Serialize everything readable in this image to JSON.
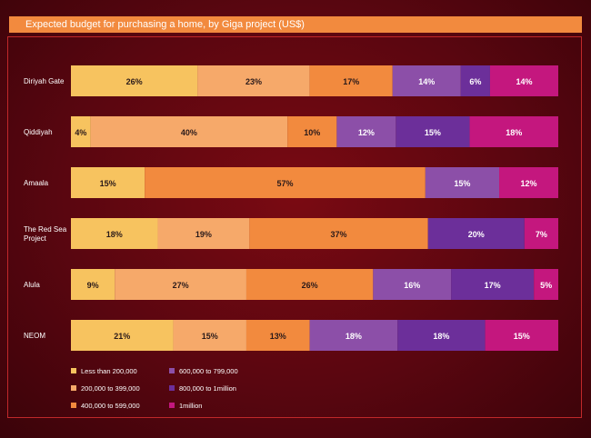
{
  "chart_data": {
    "type": "bar",
    "orientation": "horizontal",
    "stacked": true,
    "normalized": true,
    "title": "Expected budget for purchasing a home, by Giga project (US$)",
    "categories": [
      "Diriyah Gate",
      "Qiddiyah",
      "Amaala",
      "The Red Sea Project",
      "Alula",
      "NEOM"
    ],
    "category_labels": [
      [
        "Diriyah Gate"
      ],
      [
        "Qiddiyah"
      ],
      [
        "Amaala"
      ],
      [
        "The Red Sea",
        "Project"
      ],
      [
        "Alula"
      ],
      [
        "NEOM"
      ]
    ],
    "series": [
      {
        "name": "Less than 200,000",
        "color": "#f7c35f",
        "values": [
          26,
          4,
          15,
          18,
          9,
          21
        ]
      },
      {
        "name": "200,000 to 399,000",
        "color": "#f6a96a",
        "values": [
          23,
          40,
          0,
          19,
          27,
          15
        ]
      },
      {
        "name": "400,000 to 599,000",
        "color": "#f28a3e",
        "values": [
          17,
          10,
          57,
          37,
          26,
          13
        ]
      },
      {
        "name": "600,000 to 799,000",
        "color": "#8c4fa8",
        "values": [
          14,
          12,
          15,
          0,
          16,
          18
        ]
      },
      {
        "name": "800,000 to 1million",
        "color": "#6c2f9a",
        "values": [
          6,
          15,
          0,
          20,
          17,
          18
        ]
      },
      {
        "name": "1million",
        "color": "#c4177e",
        "values": [
          14,
          18,
          12,
          7,
          5,
          15
        ]
      }
    ],
    "value_suffix": "%",
    "legend_position": "bottom-left"
  }
}
